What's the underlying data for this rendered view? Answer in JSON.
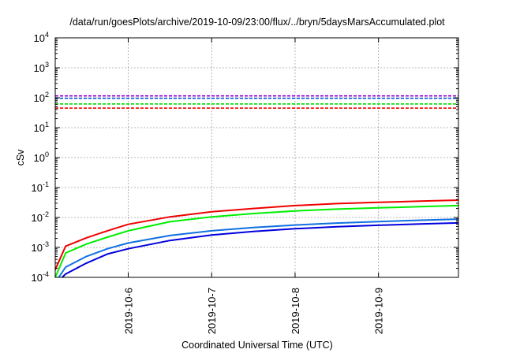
{
  "chart_data": {
    "type": "line",
    "title": "/data/run/goesPlots/archive/2019-10-09/23:00/flux/../bryn/5daysMarsAccumulated.plot",
    "xlabel": "Coordinated Universal Time (UTC)",
    "ylabel": "cSv",
    "y_scale": "log",
    "ylim": [
      0.0001,
      10000
    ],
    "xlim": [
      "2019-10-05 03:00",
      "2019-10-09 23:00"
    ],
    "grid": true,
    "y_ticks": [
      {
        "base": "10",
        "exp": "-4",
        "value": 0.0001
      },
      {
        "base": "10",
        "exp": "-3",
        "value": 0.001
      },
      {
        "base": "10",
        "exp": "-2",
        "value": 0.01
      },
      {
        "base": "10",
        "exp": "-1",
        "value": 0.1
      },
      {
        "base": "10",
        "exp": "0",
        "value": 1
      },
      {
        "base": "10",
        "exp": "1",
        "value": 10
      },
      {
        "base": "10",
        "exp": "2",
        "value": 100
      },
      {
        "base": "10",
        "exp": "3",
        "value": 1000
      },
      {
        "base": "10",
        "exp": "4",
        "value": 10000
      }
    ],
    "x_ticks": [
      "2019-10-6",
      "2019-10-7",
      "2019-10-8",
      "2019-10-9"
    ],
    "x_tick_dates": [
      "2019-10-06",
      "2019-10-07",
      "2019-10-08",
      "2019-10-09"
    ],
    "reference_lines": [
      {
        "color": "#9400d3",
        "value": 115
      },
      {
        "color": "#1060e0",
        "value": 95
      },
      {
        "color": "#00dd00",
        "value": 62
      },
      {
        "color": "#ee0000",
        "value": 45
      }
    ],
    "series": [
      {
        "color": "#ee0000",
        "x": [
          "2019-10-05 03:00",
          "2019-10-05 06:00",
          "2019-10-05 12:00",
          "2019-10-05 18:00",
          "2019-10-06 00:00",
          "2019-10-06 12:00",
          "2019-10-07 00:00",
          "2019-10-07 12:00",
          "2019-10-08 00:00",
          "2019-10-08 12:00",
          "2019-10-09 00:00",
          "2019-10-09 12:00",
          "2019-10-09 23:00"
        ],
        "y": [
          0.00018,
          0.0011,
          0.0021,
          0.0036,
          0.0059,
          0.0105,
          0.0155,
          0.02,
          0.025,
          0.029,
          0.032,
          0.035,
          0.038
        ]
      },
      {
        "color": "#00ee00",
        "x": [
          "2019-10-05 03:00",
          "2019-10-05 06:00",
          "2019-10-05 12:00",
          "2019-10-05 18:00",
          "2019-10-06 00:00",
          "2019-10-06 12:00",
          "2019-10-07 00:00",
          "2019-10-07 12:00",
          "2019-10-08 00:00",
          "2019-10-08 12:00",
          "2019-10-09 00:00",
          "2019-10-09 12:00",
          "2019-10-09 23:00"
        ],
        "y": [
          0.0001,
          0.00065,
          0.0013,
          0.0022,
          0.0036,
          0.0072,
          0.0105,
          0.0135,
          0.0165,
          0.019,
          0.021,
          0.023,
          0.025
        ]
      },
      {
        "color": "#1070e0",
        "x": [
          "2019-10-05 04:00",
          "2019-10-05 06:00",
          "2019-10-05 12:00",
          "2019-10-05 18:00",
          "2019-10-06 00:00",
          "2019-10-06 12:00",
          "2019-10-07 00:00",
          "2019-10-07 12:00",
          "2019-10-08 00:00",
          "2019-10-08 12:00",
          "2019-10-09 00:00",
          "2019-10-09 12:00",
          "2019-10-09 23:00"
        ],
        "y": [
          0.0001,
          0.00022,
          0.0005,
          0.0009,
          0.0014,
          0.0025,
          0.0036,
          0.0046,
          0.0056,
          0.0065,
          0.0073,
          0.0081,
          0.0088
        ]
      },
      {
        "color": "#0000dd",
        "x": [
          "2019-10-05 05:00",
          "2019-10-05 06:00",
          "2019-10-05 12:00",
          "2019-10-05 18:00",
          "2019-10-06 00:00",
          "2019-10-06 12:00",
          "2019-10-07 00:00",
          "2019-10-07 12:00",
          "2019-10-08 00:00",
          "2019-10-08 12:00",
          "2019-10-09 00:00",
          "2019-10-09 12:00",
          "2019-10-09 23:00"
        ],
        "y": [
          0.0001,
          0.00013,
          0.0003,
          0.0006,
          0.0009,
          0.0017,
          0.0026,
          0.0034,
          0.0042,
          0.0049,
          0.0055,
          0.0061,
          0.0066
        ]
      }
    ]
  }
}
